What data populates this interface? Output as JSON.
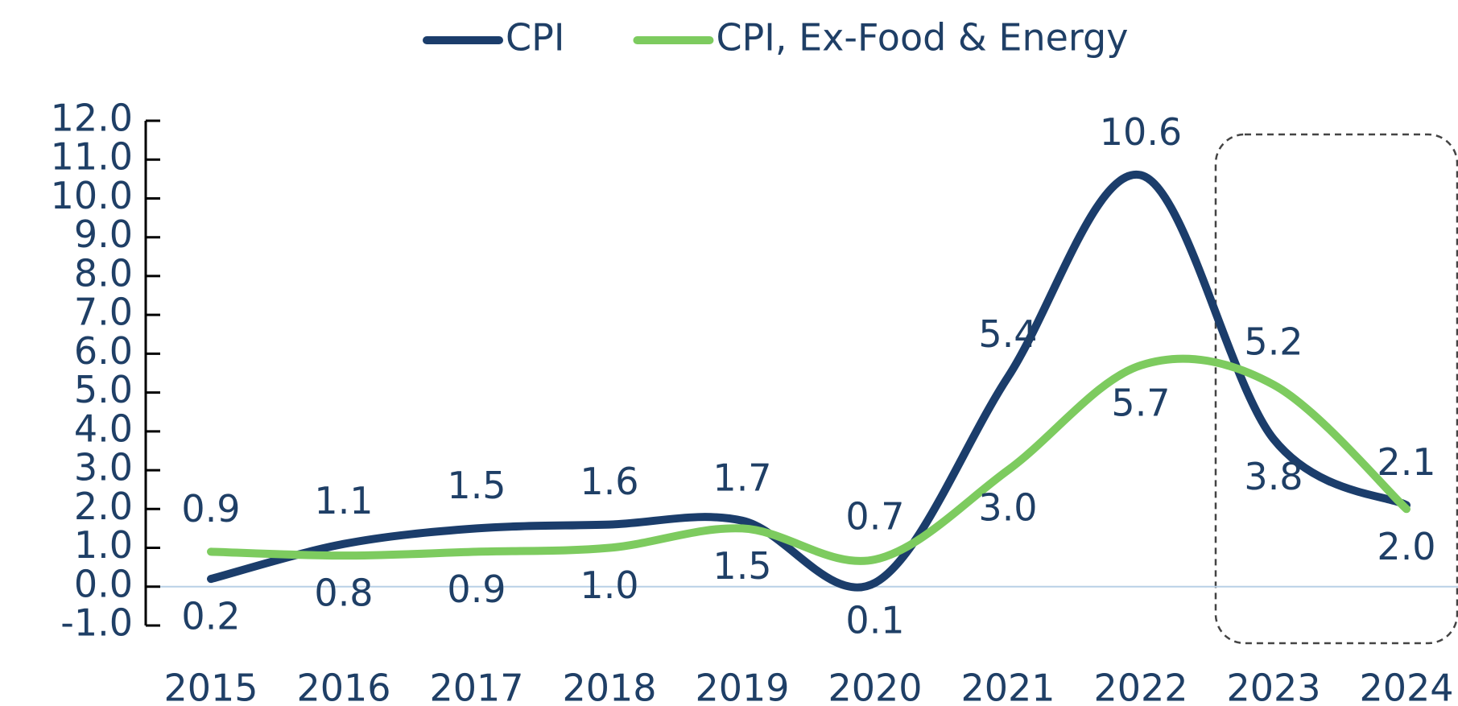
{
  "chart_data": {
    "type": "line",
    "categories": [
      "2015",
      "2016",
      "2017",
      "2018",
      "2019",
      "2020",
      "2021",
      "2022",
      "2023",
      "2024"
    ],
    "series": [
      {
        "name": "CPI",
        "color": "#1b3d6b",
        "values": [
          0.2,
          1.1,
          1.5,
          1.6,
          1.7,
          0.1,
          5.4,
          10.6,
          3.8,
          2.1
        ]
      },
      {
        "name": "CPI, Ex-Food & Energy",
        "color": "#7dcb5f",
        "values": [
          0.9,
          0.8,
          0.9,
          1.0,
          1.5,
          0.7,
          3.0,
          5.7,
          5.2,
          2.0
        ],
        "value_labels": [
          "0.9",
          "0.8",
          "0.9",
          "1.0",
          "1.5",
          "0.7",
          "3.0",
          "5.7",
          "5.2",
          "2.0"
        ]
      }
    ],
    "ylim": [
      -1,
      12
    ],
    "yticks": [
      {
        "value": -1,
        "label": "-1.0"
      },
      {
        "value": 0,
        "label": "0.0"
      },
      {
        "value": 1,
        "label": "1.0"
      },
      {
        "value": 2,
        "label": "2.0"
      },
      {
        "value": 3,
        "label": "3.0"
      },
      {
        "value": 4,
        "label": "4.0"
      },
      {
        "value": 5,
        "label": "5.0"
      },
      {
        "value": 6,
        "label": "6.0"
      },
      {
        "value": 7,
        "label": "7.0"
      },
      {
        "value": 8,
        "label": "8.0"
      },
      {
        "value": 9,
        "label": "9.0"
      },
      {
        "value": 10,
        "label": "10.0"
      },
      {
        "value": 11,
        "label": "11.0"
      },
      {
        "value": 12,
        "label": "12.0"
      }
    ],
    "legend": "top"
  }
}
